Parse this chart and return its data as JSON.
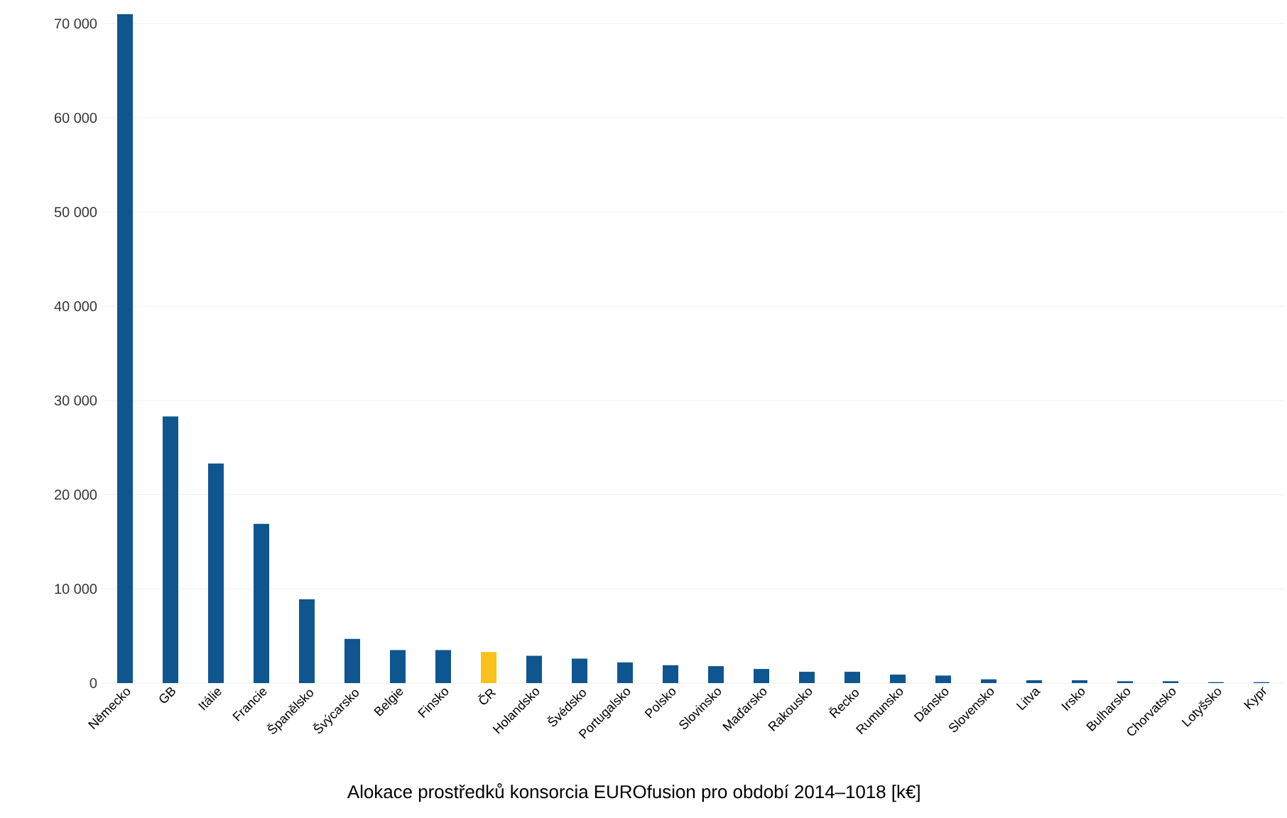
{
  "chart_data": {
    "type": "bar",
    "title": "Alokace prostředků konsorcia EUROfusion pro období 2014–1018 [k€]",
    "categories": [
      "Německo",
      "GB",
      "Itálie",
      "Francie",
      "Španělsko",
      "Švýcarsko",
      "Belgie",
      "Finsko",
      "ČR",
      "Holandsko",
      "Švédsko",
      "Portugalsko",
      "Polsko",
      "Slovinsko",
      "Maďarsko",
      "Rakousko",
      "Řecko",
      "Rumunsko",
      "Dánsko",
      "Slovensko",
      "Litva",
      "Irsko",
      "Bulharsko",
      "Chorvatsko",
      "Lotyšsko",
      "Kypr"
    ],
    "values": [
      71000,
      28300,
      23300,
      16900,
      8900,
      4700,
      3500,
      3500,
      3300,
      2900,
      2600,
      2200,
      1900,
      1800,
      1500,
      1200,
      1200,
      900,
      800,
      400,
      300,
      300,
      200,
      200,
      100,
      100
    ],
    "colors": [
      "#0f5590",
      "#0f5590",
      "#0f5590",
      "#0f5590",
      "#0f5590",
      "#0f5590",
      "#0f5590",
      "#0f5590",
      "#fbc11a",
      "#0f5590",
      "#0f5590",
      "#0f5590",
      "#0f5590",
      "#0f5590",
      "#0f5590",
      "#0f5590",
      "#0f5590",
      "#0f5590",
      "#0f5590",
      "#0f5590",
      "#0f5590",
      "#0f5590",
      "#0f5590",
      "#0f5590",
      "#0f5590",
      "#0f5590"
    ],
    "ylim": [
      0,
      71000
    ],
    "yticks": [
      0,
      {
        "value": 10000,
        "label": "10 000"
      },
      {
        "value": 20000,
        "label": "20 000"
      },
      {
        "value": 30000,
        "label": "30 000"
      },
      {
        "value": 40000,
        "label": "40 000"
      },
      {
        "value": 50000,
        "label": "50 000"
      },
      {
        "value": 60000,
        "label": "60 000"
      },
      {
        "value": 70000,
        "label": "70 000"
      }
    ],
    "grid": "y"
  }
}
